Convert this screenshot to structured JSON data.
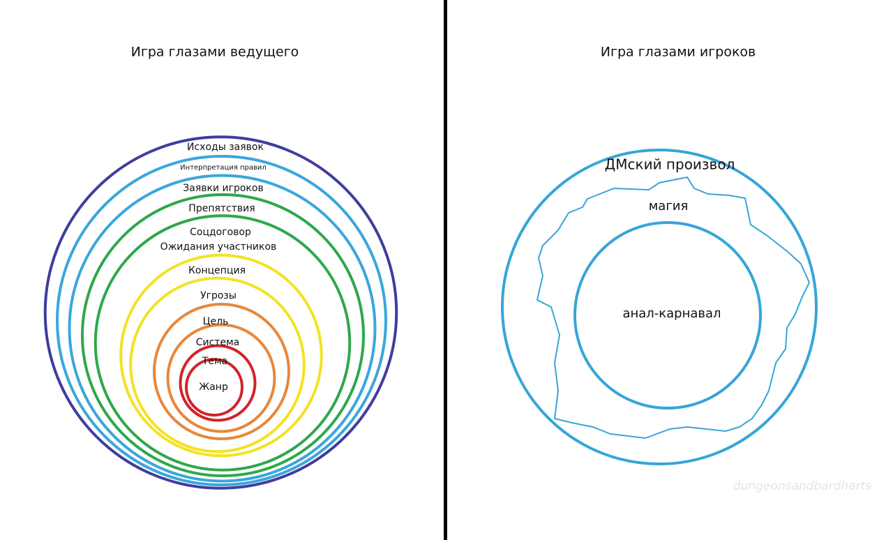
{
  "left": {
    "title": "Игра глазами ведущего",
    "labels": [
      "Исходы заявок",
      "Интерпретация правил",
      "Заявки игроков",
      "Препятствия",
      "Соцдоговор",
      "Ожидания участников",
      "Концепция",
      "Угрозы",
      "Цель",
      "Система",
      "Тема",
      "Жанр"
    ]
  },
  "right": {
    "title": "Игра глазами игроков",
    "labels": [
      "ДМский произвол",
      "магия",
      "анал-карнавал"
    ]
  },
  "watermark": "dungeonsandbardharts"
}
